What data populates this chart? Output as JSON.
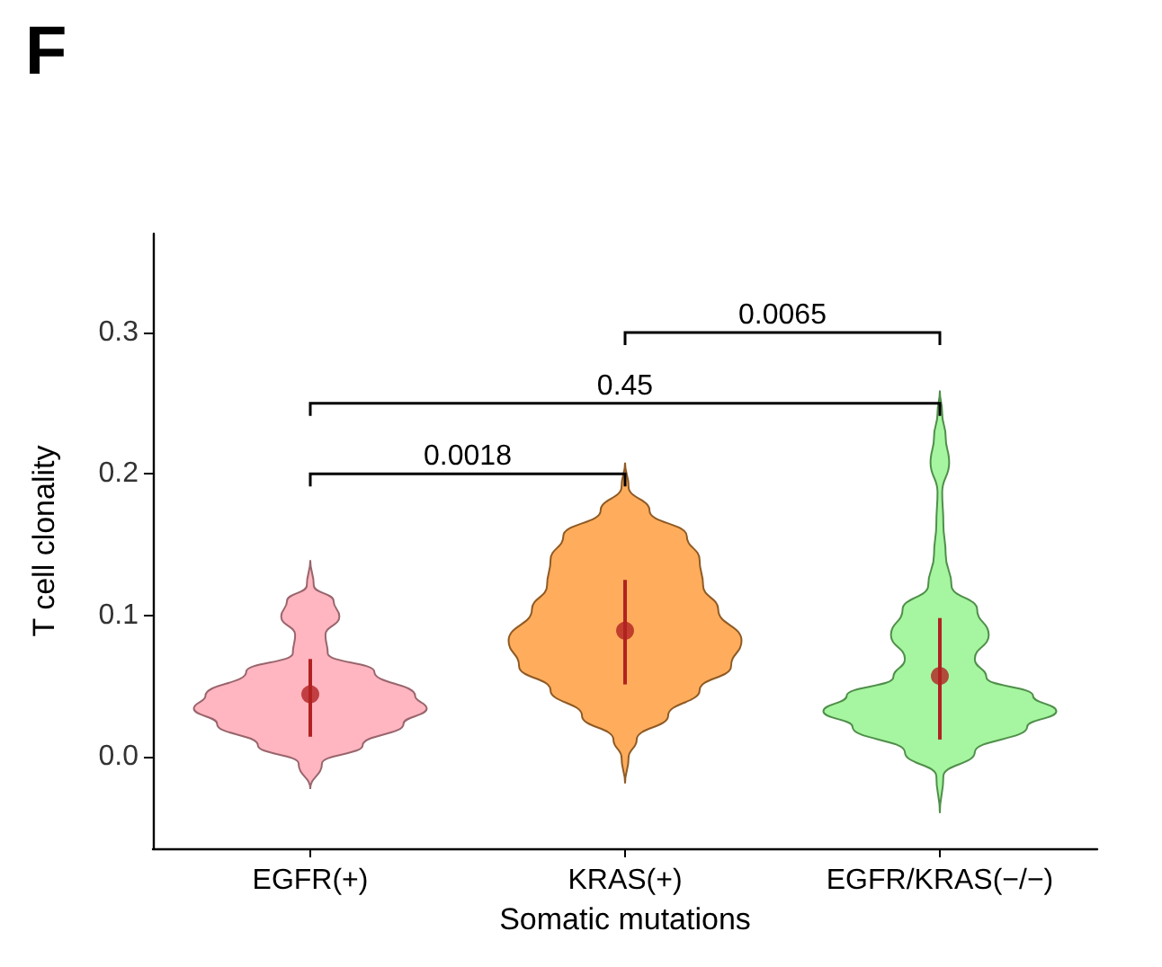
{
  "chart_data": {
    "type": "scatter",
    "title": "F",
    "xlabel": "Somatic mutations",
    "ylabel": "T cell clonality",
    "categories": [
      "EGFR(+)",
      "KRAS(+)",
      "EGFR/KRAS(−/−)"
    ],
    "ylim": [
      -0.065,
      0.37
    ],
    "yticks": [
      {
        "value": 0,
        "label": "0.0"
      },
      {
        "value": 0.1,
        "label": "0.1"
      },
      {
        "value": 0.2,
        "label": "0.2"
      },
      {
        "value": 0.3,
        "label": "0.3"
      }
    ],
    "grid": false,
    "marker": "circle",
    "annotations": [
      "0.0018",
      "0.45",
      "0.0065"
    ],
    "series": [
      {
        "color": "#b22222",
        "values": [
          0.044,
          0.089,
          0.057
        ],
        "errors": [
          [
            0.014,
            0.069
          ],
          [
            0.051,
            0.125
          ],
          [
            0.012,
            0.098
          ]
        ]
      }
    ]
  }
}
